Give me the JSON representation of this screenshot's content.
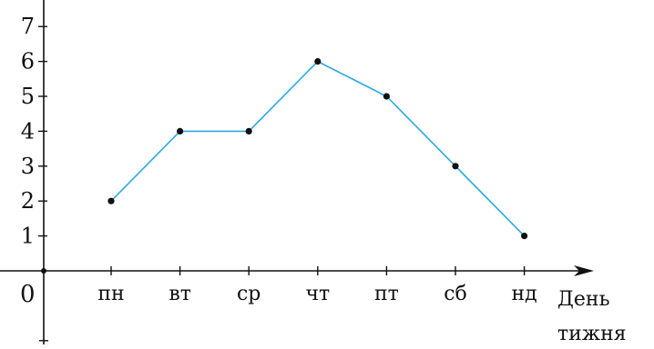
{
  "chart_data": {
    "type": "line",
    "categories": [
      "пн",
      "вт",
      "ср",
      "чт",
      "пт",
      "сб",
      "нд"
    ],
    "series": [
      {
        "values": [
          2,
          4,
          4,
          6,
          5,
          3,
          1
        ]
      }
    ],
    "yticks": [
      1,
      2,
      3,
      4,
      5,
      6,
      7
    ],
    "ylim": [
      -2,
      7.7
    ],
    "origin_label": "0",
    "xlabel_line1": "День",
    "xlabel_line2": "тижня",
    "grid": false,
    "colors": {
      "line": "#29a9e0",
      "point": "#111111",
      "axis": "#111111"
    }
  }
}
